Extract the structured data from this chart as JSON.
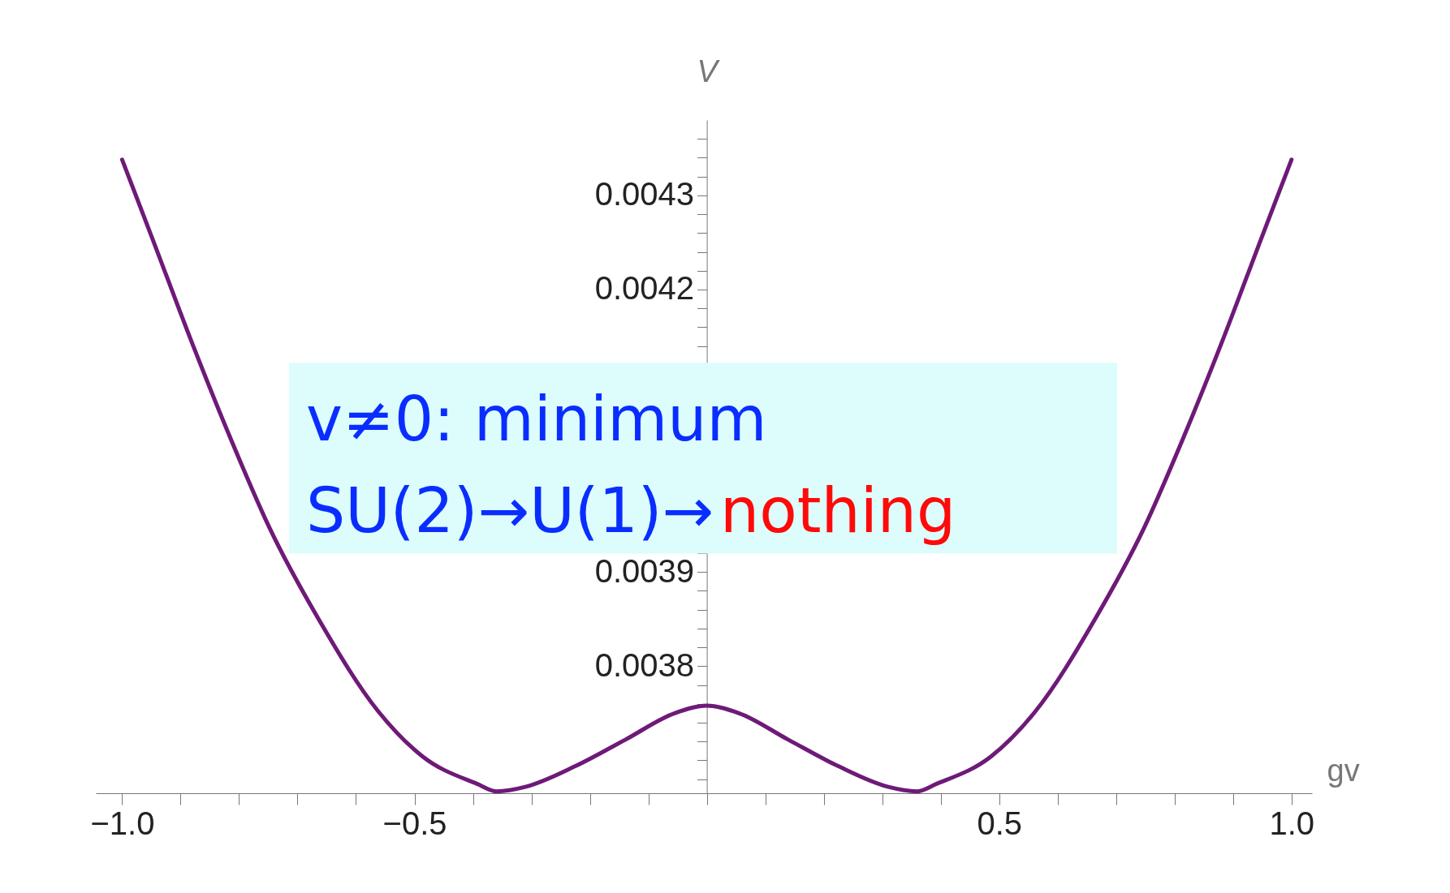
{
  "chart_data": {
    "type": "line",
    "xlabel": "gv",
    "ylabel": "V",
    "xlim": [
      -1.045,
      1.035
    ],
    "ylim": [
      0.003665,
      0.00438
    ],
    "xticks": [
      {
        "value": -1.0,
        "label": "−1.0"
      },
      {
        "value": -0.9,
        "label": null
      },
      {
        "value": -0.8,
        "label": null
      },
      {
        "value": -0.7,
        "label": null
      },
      {
        "value": -0.6,
        "label": null
      },
      {
        "value": -0.5,
        "label": "−0.5"
      },
      {
        "value": -0.4,
        "label": null
      },
      {
        "value": -0.3,
        "label": null
      },
      {
        "value": -0.2,
        "label": null
      },
      {
        "value": -0.1,
        "label": null
      },
      {
        "value": 0,
        "label": null
      },
      {
        "value": 0.1,
        "label": null
      },
      {
        "value": 0.2,
        "label": null
      },
      {
        "value": 0.3,
        "label": null
      },
      {
        "value": 0.4,
        "label": null
      },
      {
        "value": 0.5,
        "label": "0.5"
      },
      {
        "value": 0.6,
        "label": null
      },
      {
        "value": 0.7,
        "label": null
      },
      {
        "value": 0.8,
        "label": null
      },
      {
        "value": 0.9,
        "label": null
      },
      {
        "value": 1.0,
        "label": "1.0"
      }
    ],
    "yticks": [
      {
        "value": 0.00368,
        "label": null
      },
      {
        "value": 0.0037,
        "label": null
      },
      {
        "value": 0.00372,
        "label": null
      },
      {
        "value": 0.00374,
        "label": null
      },
      {
        "value": 0.00376,
        "label": null
      },
      {
        "value": 0.0038,
        "label": "0.0038"
      },
      {
        "value": 0.00378,
        "label": null
      },
      {
        "value": 0.00382,
        "label": null
      },
      {
        "value": 0.00384,
        "label": null
      },
      {
        "value": 0.00386,
        "label": null
      },
      {
        "value": 0.00388,
        "label": null
      },
      {
        "value": 0.0039,
        "label": "0.0039"
      },
      {
        "value": 0.00392,
        "label": null
      },
      {
        "value": 0.00414,
        "label": null
      },
      {
        "value": 0.00416,
        "label": null
      },
      {
        "value": 0.00418,
        "label": null
      },
      {
        "value": 0.0042,
        "label": "0.0042"
      },
      {
        "value": 0.00422,
        "label": null
      },
      {
        "value": 0.00424,
        "label": null
      },
      {
        "value": 0.00426,
        "label": null
      },
      {
        "value": 0.00428,
        "label": null
      },
      {
        "value": 0.0043,
        "label": "0.0043"
      },
      {
        "value": 0.00432,
        "label": null
      },
      {
        "value": 0.00434,
        "label": null
      },
      {
        "value": 0.00436,
        "label": null
      }
    ],
    "x": [
      -1.0,
      -0.95,
      -0.879,
      -0.816,
      -0.748,
      -0.664,
      -0.562,
      -0.486,
      -0.393,
      -0.359,
      -0.309,
      -0.224,
      -0.139,
      -0.055,
      0,
      0.055,
      0.139,
      0.224,
      0.309,
      0.359,
      0.393,
      0.486,
      0.562,
      0.664,
      0.748,
      0.816,
      0.879,
      0.95,
      1.0
    ],
    "series": [
      {
        "color": "#6e1a78",
        "values": [
          0.004338,
          0.004257,
          0.004141,
          0.004044,
          0.003947,
          0.00385,
          0.003752,
          0.003704,
          0.003675,
          0.003667,
          0.003672,
          0.003694,
          0.003722,
          0.00375,
          0.003758,
          0.00375,
          0.003722,
          0.003694,
          0.003672,
          0.003667,
          0.003675,
          0.003704,
          0.003752,
          0.00385,
          0.003947,
          0.004044,
          0.004141,
          0.004257,
          0.004338
        ]
      }
    ],
    "grid": false,
    "marker": "none",
    "line_style": "solid",
    "annotations": [
      "v≠0: minimum",
      "SU(2)→U(1)→",
      "nothing"
    ]
  }
}
